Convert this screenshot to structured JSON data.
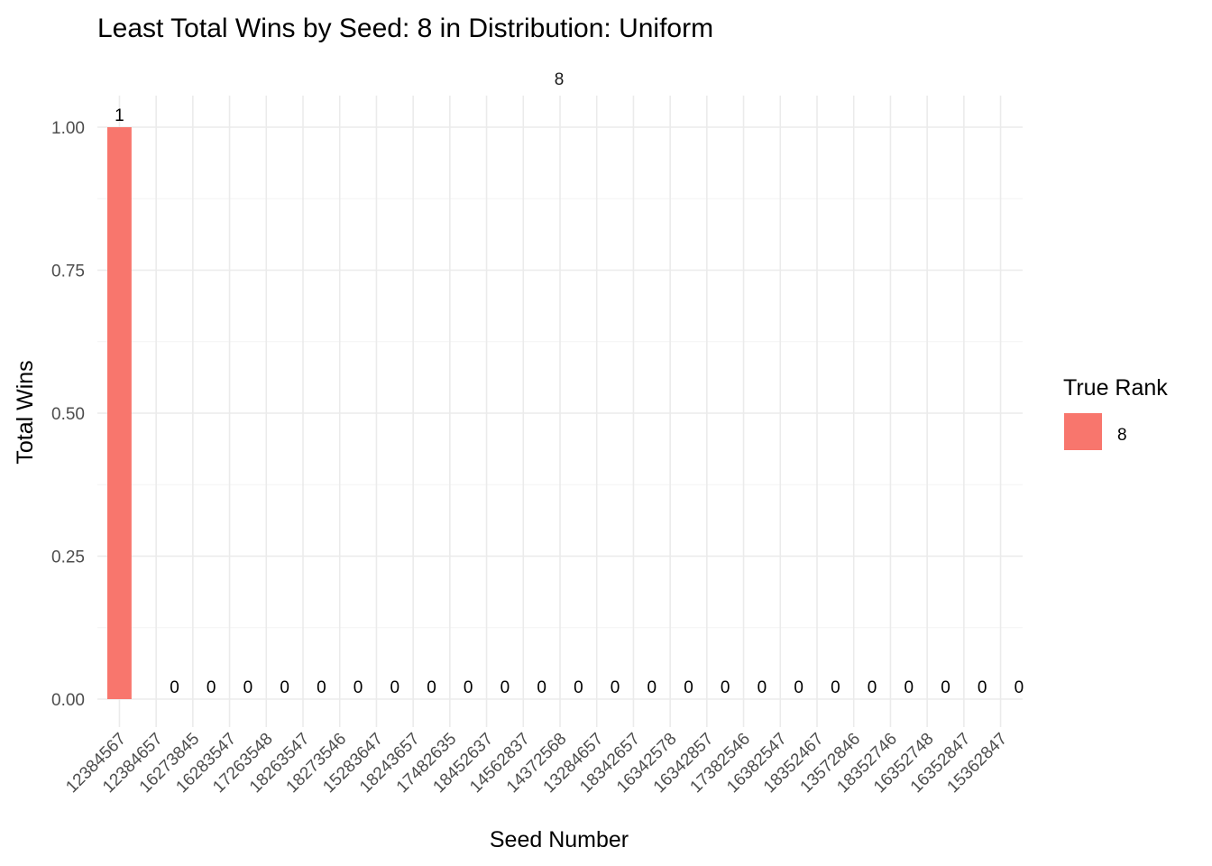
{
  "chart_data": {
    "type": "bar",
    "title": "Least Total Wins by Seed: 8 in Distribution: Uniform",
    "facet_label": "8",
    "xlabel": "Seed Number",
    "ylabel": "Total Wins",
    "ylim": [
      0,
      1
    ],
    "y_ticks": [
      "0.00",
      "0.25",
      "0.50",
      "0.75",
      "1.00"
    ],
    "categories": [
      "12384567",
      "12384657",
      "16273845",
      "16283547",
      "17263548",
      "18263547",
      "18273546",
      "15283647",
      "18243657",
      "17482635",
      "18452637",
      "14562837",
      "14372568",
      "13284657",
      "18342657",
      "16342578",
      "16342857",
      "17382546",
      "16382547",
      "18352467",
      "13572846",
      "18352746",
      "16352748",
      "16352847",
      "15362847"
    ],
    "series": [
      {
        "name": "8",
        "color": "#F8766D",
        "values": [
          1,
          0,
          0,
          0,
          0,
          0,
          0,
          0,
          0,
          0,
          0,
          0,
          0,
          0,
          0,
          0,
          0,
          0,
          0,
          0,
          0,
          0,
          0,
          0,
          0
        ]
      }
    ],
    "data_labels": [
      "1",
      "0",
      "0",
      "0",
      "0",
      "0",
      "0",
      "0",
      "0",
      "0",
      "0",
      "0",
      "0",
      "0",
      "0",
      "0",
      "0",
      "0",
      "0",
      "0",
      "0",
      "0",
      "0",
      "0",
      "0"
    ],
    "grid": true,
    "legend": {
      "title": "True Rank",
      "position": "right",
      "items": [
        {
          "label": "8",
          "color": "#F8766D"
        }
      ]
    }
  }
}
